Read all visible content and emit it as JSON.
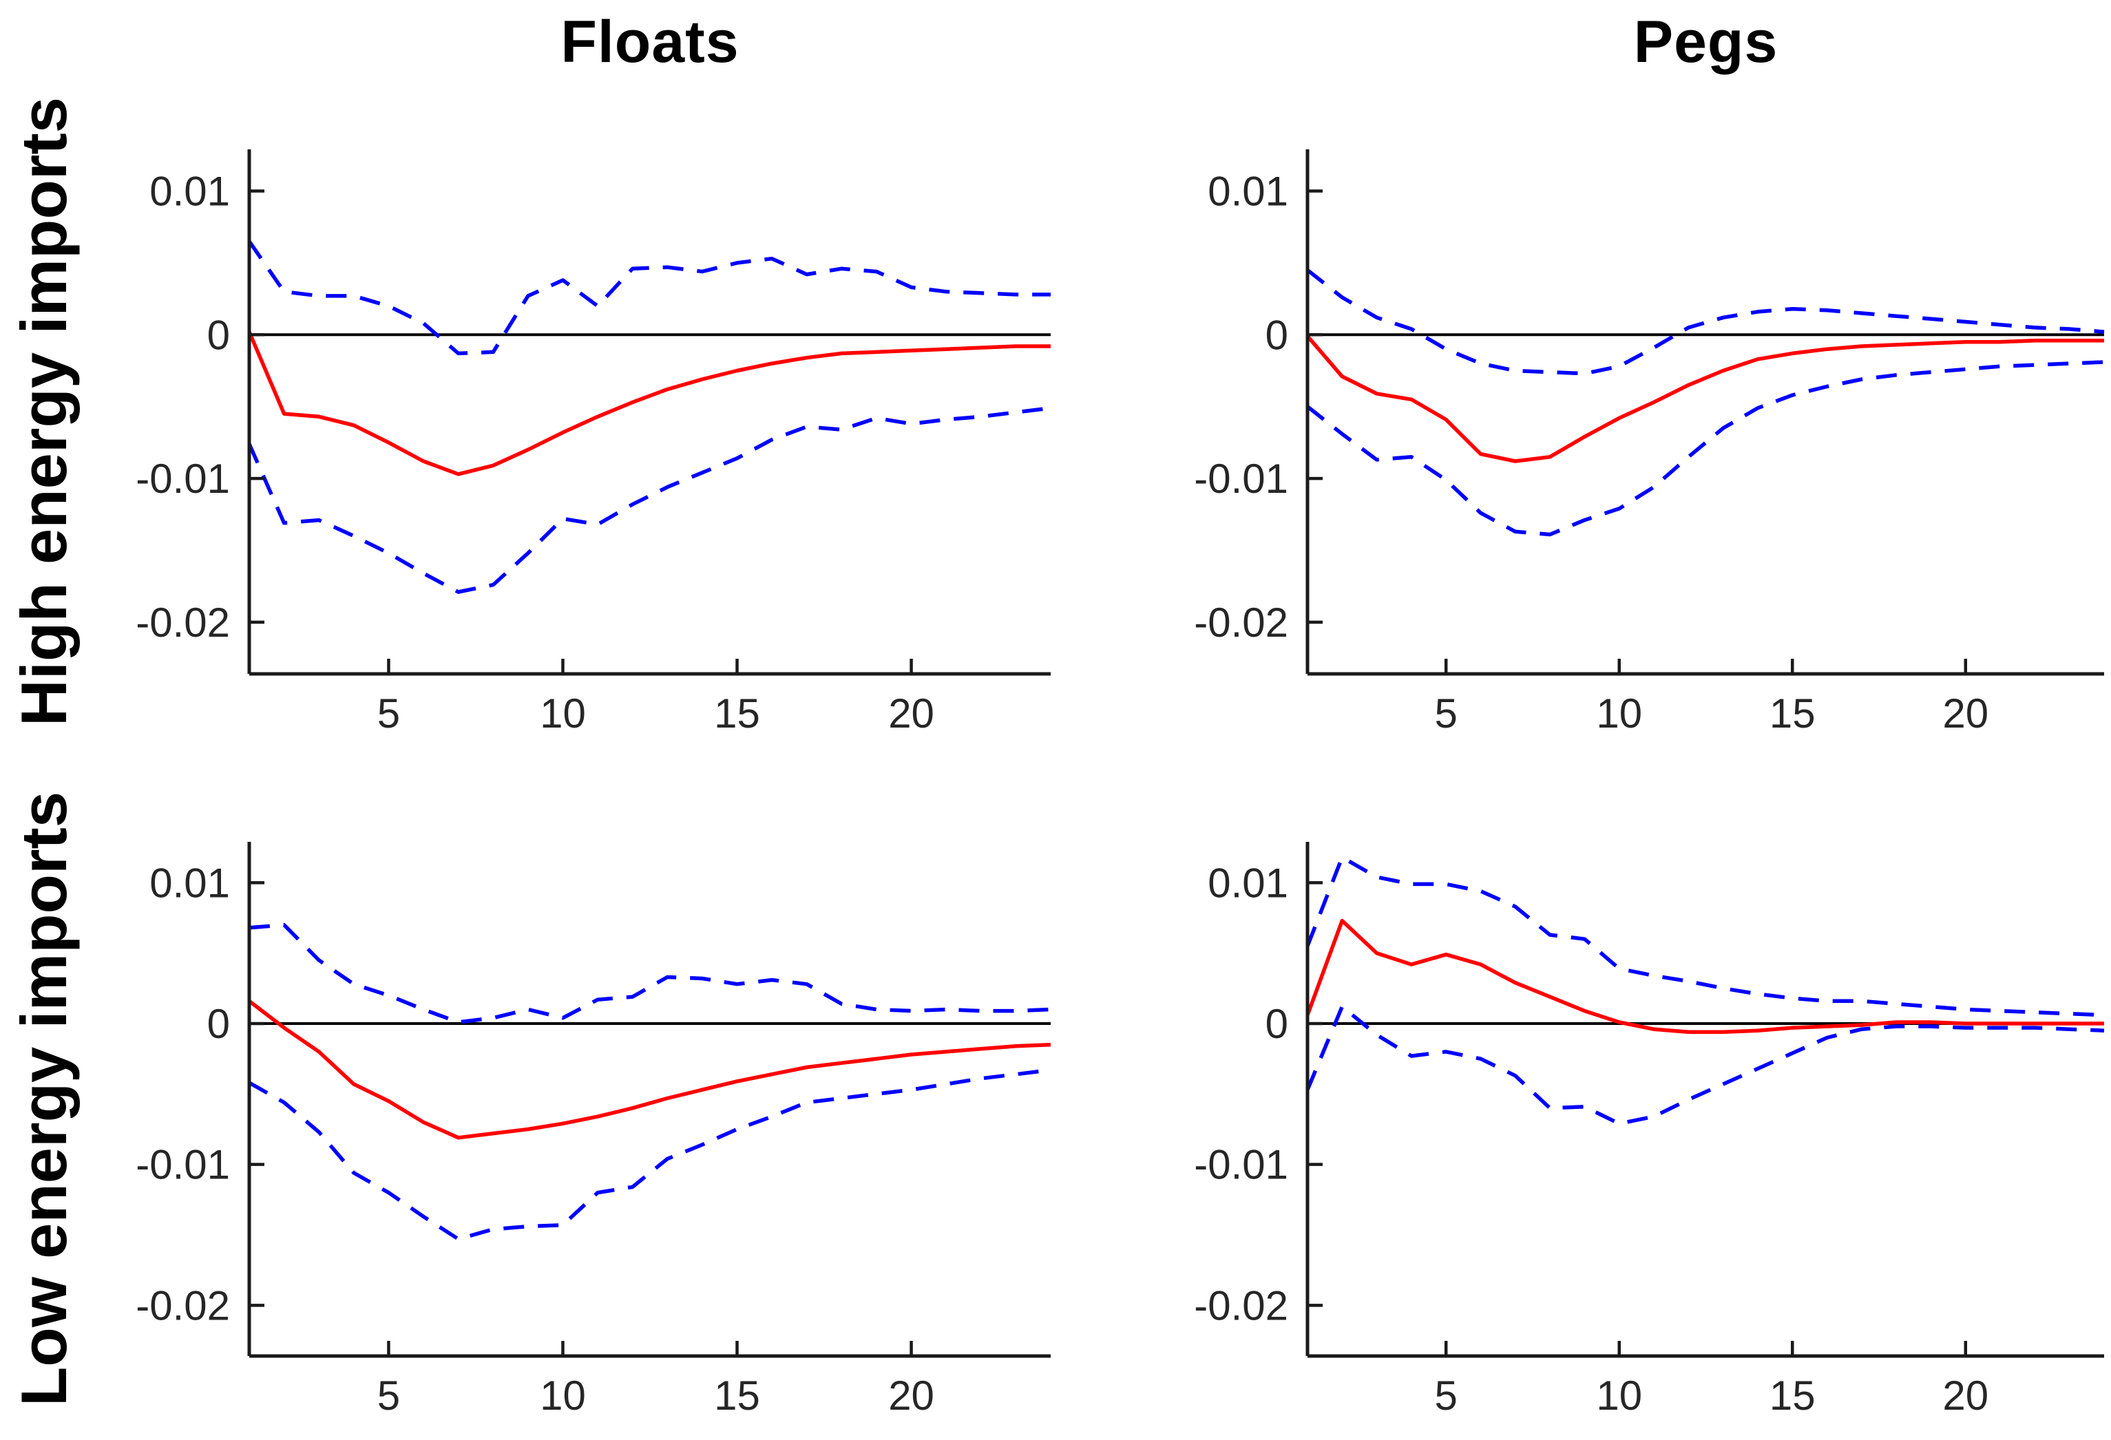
{
  "figure": {
    "background": "#ffffff",
    "column_titles": [
      {
        "label": "Floats"
      },
      {
        "label": "Pegs"
      }
    ],
    "row_labels": [
      {
        "label": "High energy imports"
      },
      {
        "label": "Low energy imports"
      }
    ]
  },
  "style": {
    "median_color": "#ff0000",
    "band_color": "#0000ff",
    "zero_line_color": "#000000",
    "axis_color": "#1a1a1a",
    "tick_label_color": "#262626"
  },
  "axes": {
    "x_ticks": [
      5,
      10,
      15,
      20
    ],
    "y_ticks": [
      0.01,
      0,
      -0.01,
      -0.02
    ],
    "y_tick_labels": [
      "0.01",
      "0",
      "-0.01",
      "-0.02"
    ],
    "xlim": [
      1,
      24
    ],
    "ylim": [
      -0.0236,
      0.0129
    ]
  },
  "chart_data": [
    {
      "type": "line",
      "title": "Floats",
      "row_label": "High energy imports",
      "xlim": [
        1,
        24
      ],
      "ylim": [
        -0.0236,
        0.0129
      ],
      "x_ticks": [
        5,
        10,
        15,
        20
      ],
      "y_ticks": [
        0.01,
        0,
        -0.01,
        -0.02
      ],
      "y_tick_labels": [
        "0.01",
        "0",
        "-0.01",
        "-0.02"
      ],
      "zero_line": true,
      "x": [
        1,
        2,
        3,
        4,
        5,
        6,
        7,
        8,
        9,
        10,
        11,
        12,
        13,
        14,
        15,
        16,
        17,
        18,
        19,
        20,
        21,
        22,
        23,
        24
      ],
      "series": [
        {
          "name": "impulse-response-median",
          "color": "#ff0000",
          "style": "solid",
          "values": [
            0.0002,
            -0.0055,
            -0.0057,
            -0.0063,
            -0.0075,
            -0.0088,
            -0.0097,
            -0.0091,
            -0.008,
            -0.0068,
            -0.0057,
            -0.0047,
            -0.0038,
            -0.0031,
            -0.0025,
            -0.002,
            -0.0016,
            -0.0013,
            -0.0012,
            -0.0011,
            -0.001,
            -0.0009,
            -0.0008,
            -0.0008
          ]
        },
        {
          "name": "upper-confidence-band",
          "color": "#0000ff",
          "style": "dashed",
          "values": [
            0.0065,
            0.003,
            0.0027,
            0.0027,
            0.002,
            0.0008,
            -0.0013,
            -0.0012,
            0.0027,
            0.0038,
            0.002,
            0.0046,
            0.0047,
            0.0044,
            0.005,
            0.0053,
            0.0042,
            0.0046,
            0.0044,
            0.0033,
            0.003,
            0.0029,
            0.0028,
            0.0028
          ]
        },
        {
          "name": "lower-confidence-band",
          "color": "#0000ff",
          "style": "dashed",
          "values": [
            -0.0076,
            -0.0131,
            -0.0129,
            -0.014,
            -0.0152,
            -0.0166,
            -0.0179,
            -0.0174,
            -0.0152,
            -0.0128,
            -0.0132,
            -0.0118,
            -0.0106,
            -0.0096,
            -0.0086,
            -0.0073,
            -0.0064,
            -0.0066,
            -0.0058,
            -0.0062,
            -0.0059,
            -0.0057,
            -0.0054,
            -0.0051
          ]
        }
      ]
    },
    {
      "type": "line",
      "title": "Pegs",
      "row_label": "High energy imports",
      "xlim": [
        1,
        24
      ],
      "ylim": [
        -0.0236,
        0.0129
      ],
      "x_ticks": [
        5,
        10,
        15,
        20
      ],
      "y_ticks": [
        0.01,
        0,
        -0.01,
        -0.02
      ],
      "y_tick_labels": [
        "0.01",
        "0",
        "-0.01",
        "-0.02"
      ],
      "zero_line": true,
      "x": [
        1,
        2,
        3,
        4,
        5,
        6,
        7,
        8,
        9,
        10,
        11,
        12,
        13,
        14,
        15,
        16,
        17,
        18,
        19,
        20,
        21,
        22,
        23,
        24
      ],
      "series": [
        {
          "name": "impulse-response-median",
          "color": "#ff0000",
          "style": "solid",
          "values": [
            -0.0001,
            -0.0029,
            -0.0041,
            -0.0045,
            -0.0059,
            -0.0083,
            -0.0088,
            -0.0085,
            -0.0071,
            -0.0058,
            -0.0047,
            -0.0035,
            -0.0025,
            -0.0017,
            -0.0013,
            -0.001,
            -0.0008,
            -0.0007,
            -0.0006,
            -0.0005,
            -0.0005,
            -0.0004,
            -0.0004,
            -0.0004
          ]
        },
        {
          "name": "upper-confidence-band",
          "color": "#0000ff",
          "style": "dashed",
          "values": [
            0.0045,
            0.0026,
            0.0012,
            0.0004,
            -0.001,
            -0.002,
            -0.0025,
            -0.0026,
            -0.0027,
            -0.0022,
            -0.0009,
            0.0005,
            0.0012,
            0.0016,
            0.0018,
            0.0017,
            0.0015,
            0.0013,
            0.0011,
            0.0009,
            0.0007,
            0.0005,
            0.0004,
            0.0002
          ]
        },
        {
          "name": "lower-confidence-band",
          "color": "#0000ff",
          "style": "dashed",
          "values": [
            -0.005,
            -0.0069,
            -0.0087,
            -0.0085,
            -0.0101,
            -0.0124,
            -0.0137,
            -0.0139,
            -0.0129,
            -0.0121,
            -0.0106,
            -0.0085,
            -0.0065,
            -0.0051,
            -0.0042,
            -0.0036,
            -0.0031,
            -0.0028,
            -0.0026,
            -0.0024,
            -0.0022,
            -0.0021,
            -0.002,
            -0.0019
          ]
        }
      ]
    },
    {
      "type": "line",
      "title": "Floats",
      "row_label": "Low energy imports",
      "xlim": [
        1,
        24
      ],
      "ylim": [
        -0.0236,
        0.0129
      ],
      "x_ticks": [
        5,
        10,
        15,
        20
      ],
      "y_ticks": [
        0.01,
        0,
        -0.01,
        -0.02
      ],
      "y_tick_labels": [
        "0.01",
        "0",
        "-0.01",
        "-0.02"
      ],
      "zero_line": true,
      "x": [
        1,
        2,
        3,
        4,
        5,
        6,
        7,
        8,
        9,
        10,
        11,
        12,
        13,
        14,
        15,
        16,
        17,
        18,
        19,
        20,
        21,
        22,
        23,
        24
      ],
      "series": [
        {
          "name": "impulse-response-median",
          "color": "#ff0000",
          "style": "solid",
          "values": [
            0.0016,
            -0.0003,
            -0.002,
            -0.0043,
            -0.0055,
            -0.007,
            -0.0081,
            -0.0078,
            -0.0075,
            -0.0071,
            -0.0066,
            -0.006,
            -0.0053,
            -0.0047,
            -0.0041,
            -0.0036,
            -0.0031,
            -0.0028,
            -0.0025,
            -0.0022,
            -0.002,
            -0.0018,
            -0.0016,
            -0.0015
          ]
        },
        {
          "name": "upper-confidence-band",
          "color": "#0000ff",
          "style": "dashed",
          "values": [
            0.0068,
            0.007,
            0.0045,
            0.0028,
            0.002,
            0.001,
            0.0001,
            0.0004,
            0.001,
            0.0004,
            0.0017,
            0.0019,
            0.0033,
            0.0032,
            0.0028,
            0.0031,
            0.0028,
            0.0014,
            0.001,
            0.0009,
            0.001,
            0.0009,
            0.0009,
            0.001
          ]
        },
        {
          "name": "lower-confidence-band",
          "color": "#0000ff",
          "style": "dashed",
          "values": [
            -0.0042,
            -0.0056,
            -0.0077,
            -0.0106,
            -0.012,
            -0.0137,
            -0.0153,
            -0.0146,
            -0.0144,
            -0.0143,
            -0.012,
            -0.0116,
            -0.0096,
            -0.0086,
            -0.0075,
            -0.0066,
            -0.0056,
            -0.0053,
            -0.005,
            -0.0047,
            -0.0043,
            -0.0039,
            -0.0036,
            -0.0033
          ]
        }
      ]
    },
    {
      "type": "line",
      "title": "Pegs",
      "row_label": "Low energy imports",
      "xlim": [
        1,
        24
      ],
      "ylim": [
        -0.0236,
        0.0129
      ],
      "x_ticks": [
        5,
        10,
        15,
        20
      ],
      "y_ticks": [
        0.01,
        0,
        -0.01,
        -0.02
      ],
      "y_tick_labels": [
        "0.01",
        "0",
        "-0.01",
        "-0.02"
      ],
      "zero_line": true,
      "x": [
        1,
        2,
        3,
        4,
        5,
        6,
        7,
        8,
        9,
        10,
        11,
        12,
        13,
        14,
        15,
        16,
        17,
        18,
        19,
        20,
        21,
        22,
        23,
        24
      ],
      "series": [
        {
          "name": "impulse-response-median",
          "color": "#ff0000",
          "style": "solid",
          "values": [
            0.0006,
            0.0073,
            0.005,
            0.0042,
            0.0049,
            0.0042,
            0.0029,
            0.0019,
            0.0009,
            0.0001,
            -0.0004,
            -0.0006,
            -0.0006,
            -0.0005,
            -0.0003,
            -0.0002,
            -0.0001,
            0.0001,
            0.0001,
            0.0,
            0.0,
            0.0,
            0.0,
            0.0
          ]
        },
        {
          "name": "upper-confidence-band",
          "color": "#0000ff",
          "style": "dashed",
          "values": [
            0.0055,
            0.0118,
            0.0104,
            0.0099,
            0.0099,
            0.0094,
            0.0083,
            0.0063,
            0.006,
            0.0039,
            0.0034,
            0.003,
            0.0025,
            0.0021,
            0.0018,
            0.0016,
            0.0016,
            0.0014,
            0.0012,
            0.001,
            0.0009,
            0.0008,
            0.0007,
            0.0006
          ]
        },
        {
          "name": "lower-confidence-band",
          "color": "#0000ff",
          "style": "dashed",
          "values": [
            -0.0047,
            0.0012,
            -0.0008,
            -0.0023,
            -0.002,
            -0.0025,
            -0.0037,
            -0.006,
            -0.0059,
            -0.0071,
            -0.0066,
            -0.0054,
            -0.0043,
            -0.0032,
            -0.0021,
            -0.001,
            -0.0004,
            -0.0002,
            -0.0002,
            -0.0003,
            -0.0003,
            -0.0003,
            -0.0004,
            -0.0005
          ]
        }
      ]
    }
  ]
}
